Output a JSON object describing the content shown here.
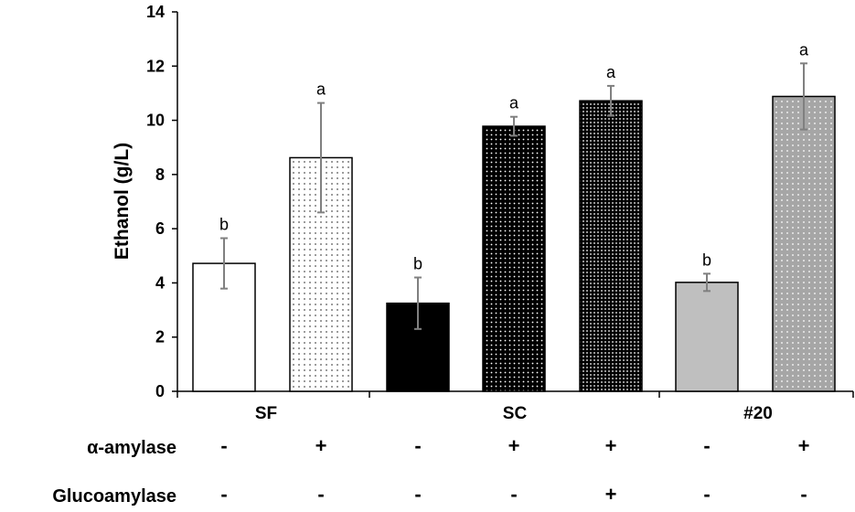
{
  "chart_data": {
    "type": "bar",
    "ylabel": "Ethanol (g/L)",
    "ylim": [
      0,
      14
    ],
    "yticks": [
      0,
      2,
      4,
      6,
      8,
      10,
      12,
      14
    ],
    "groups": [
      {
        "label": "SF",
        "bars": [
          0,
          1
        ]
      },
      {
        "label": "SC",
        "bars": [
          2,
          3,
          4
        ]
      },
      {
        "label": "#20",
        "bars": [
          5,
          6
        ]
      }
    ],
    "bars": [
      {
        "value": 4.72,
        "error": 0.93,
        "sig": "b",
        "fill": "#ffffff",
        "dots": "none"
      },
      {
        "value": 8.62,
        "error": 2.02,
        "sig": "a",
        "fill": "#ffffff",
        "dots": "dark-sparse"
      },
      {
        "value": 3.25,
        "error": 0.95,
        "sig": "b",
        "fill": "#000000",
        "dots": "none"
      },
      {
        "value": 9.78,
        "error": 0.35,
        "sig": "a",
        "fill": "#000000",
        "dots": "light-sparse"
      },
      {
        "value": 10.72,
        "error": 0.55,
        "sig": "a",
        "fill": "#000000",
        "dots": "light-dense"
      },
      {
        "value": 4.02,
        "error": 0.32,
        "sig": "b",
        "fill": "#bfbfbf",
        "dots": "none"
      },
      {
        "value": 10.88,
        "error": 1.22,
        "sig": "a",
        "fill": "#a6a6a6",
        "dots": "light-sparse"
      }
    ],
    "treatments": [
      {
        "label": "α-amylase",
        "signs": [
          "-",
          "+",
          "-",
          "+",
          "+",
          "-",
          "+"
        ]
      },
      {
        "label": "Glucoamylase",
        "signs": [
          "-",
          "-",
          "-",
          "-",
          "+",
          "-",
          "-"
        ]
      }
    ],
    "error_bar_color": "#808080",
    "legend": "none",
    "grid": false
  }
}
